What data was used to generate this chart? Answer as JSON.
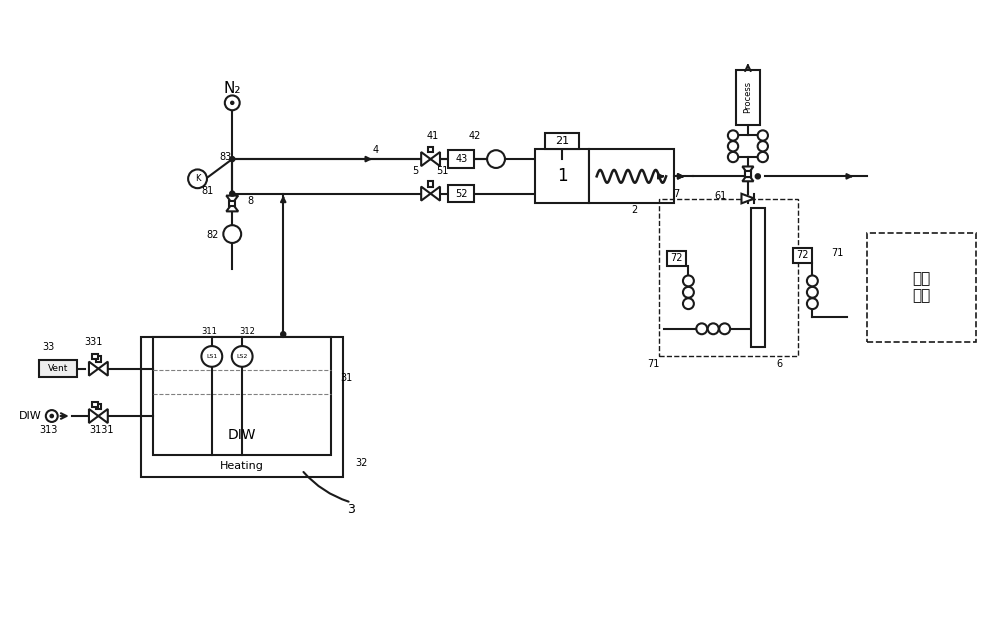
{
  "bg_color": "#ffffff",
  "line_color": "#1a1a1a",
  "lw": 1.5,
  "labels": {
    "N2": "N₂",
    "DIW_inlet": "DIW",
    "Vent": "Vent",
    "DIW_box": "DIW",
    "Heating": "Heating",
    "Process": "Process",
    "chamber": "工艺\n腔室",
    "n1": "1",
    "n2": "2",
    "n3": "3",
    "n4": "4",
    "n5": "5",
    "n6": "6",
    "n7": "7",
    "n8": "8",
    "n21": "21",
    "n31": "31",
    "n32": "32",
    "n33": "33",
    "n41": "41",
    "n42": "42",
    "n43": "43",
    "n51": "51",
    "n52": "52",
    "n61": "61",
    "n71": "71",
    "n72": "72",
    "n81": "81",
    "n82": "82",
    "n83": "83",
    "n311": "311",
    "n312": "312",
    "n313": "313",
    "n331": "331",
    "n3131": "3131",
    "LS1": "LS1",
    "LS2": "LS2"
  }
}
